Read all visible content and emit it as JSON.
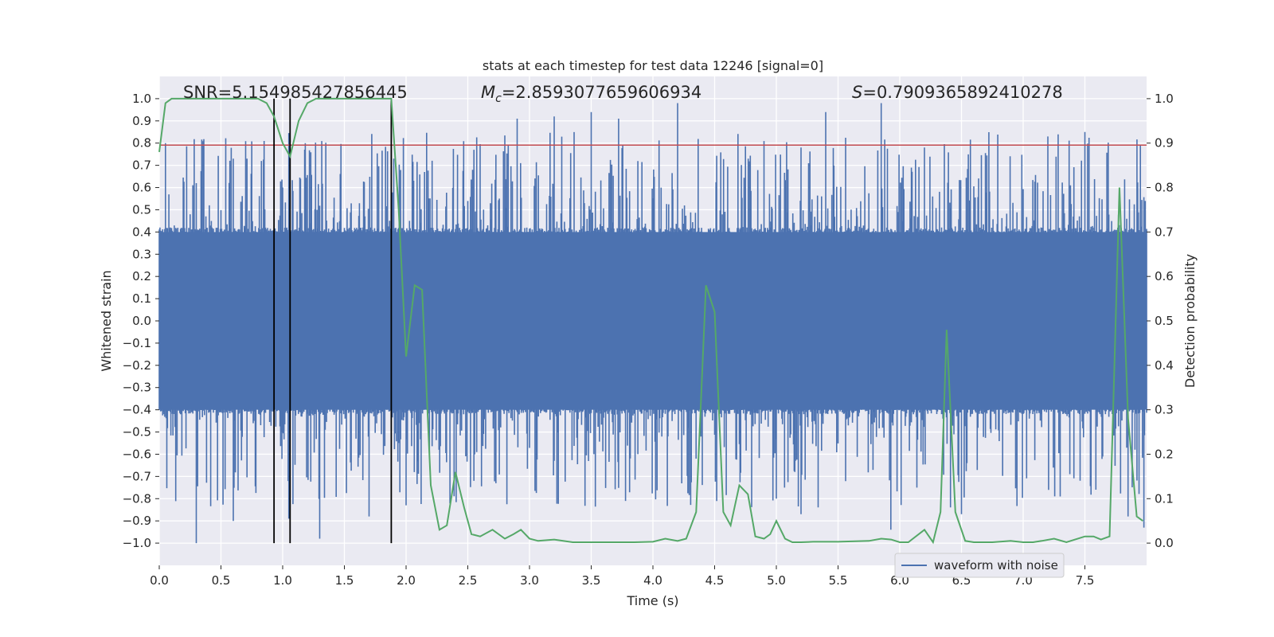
{
  "chart_data": {
    "type": "line",
    "title": "stats at each timestep for test data 12246 [signal=0]",
    "xlabel": "Time (s)",
    "ylabel": "Whitened strain",
    "y2label": "Detection probability",
    "xlim": [
      0.0,
      8.0
    ],
    "ylim": [
      -1.1,
      1.1
    ],
    "y2lim": [
      -0.05,
      1.05
    ],
    "xticks": [
      "0.0",
      "0.5",
      "1.0",
      "1.5",
      "2.0",
      "2.5",
      "3.0",
      "3.5",
      "4.0",
      "4.5",
      "5.0",
      "5.5",
      "6.0",
      "6.5",
      "7.0",
      "7.5"
    ],
    "yticks": [
      "1.0",
      "0.9",
      "0.8",
      "0.7",
      "0.6",
      "0.5",
      "0.4",
      "0.3",
      "0.2",
      "0.1",
      "0.0",
      "−0.1",
      "−0.2",
      "−0.3",
      "−0.4",
      "−0.5",
      "−0.6",
      "−0.7",
      "−0.8",
      "−0.9",
      "−1.0"
    ],
    "y2ticks": [
      "1.0",
      "0.9",
      "0.8",
      "0.7",
      "0.6",
      "0.5",
      "0.4",
      "0.3",
      "0.2",
      "0.1",
      "0.0"
    ],
    "annotations": {
      "snr": "SNR=5.154985427856445",
      "mc_symbol": "M",
      "mc_sub": "c",
      "mc_value": "=2.8593077659606934",
      "s_symbol": "S",
      "s_value": "=0.7909365892410278"
    },
    "legend": {
      "label": "waveform with noise",
      "position": "lower-right"
    },
    "colors": {
      "background": "#eaeaf2",
      "grid": "#ffffff",
      "waveform": "#4c72b0",
      "probability": "#55a868",
      "threshold": "#c44e52",
      "markers": "#000000"
    },
    "threshold": 0.7909365892410278,
    "vertical_markers": [
      0.93,
      1.06,
      1.88
    ],
    "waveform_with_noise": {
      "note_type": "dense noise",
      "core_amplitude": 0.4,
      "peaks_up": [
        [
          0.05,
          0.8
        ],
        [
          0.3,
          0.62
        ],
        [
          0.6,
          0.73
        ],
        [
          0.83,
          0.72
        ],
        [
          1.0,
          0.6
        ],
        [
          2.15,
          0.67
        ],
        [
          2.55,
          0.77
        ],
        [
          2.9,
          0.91
        ],
        [
          3.2,
          0.92
        ],
        [
          3.5,
          0.94
        ],
        [
          3.72,
          0.91
        ],
        [
          4.2,
          0.98
        ],
        [
          5.2,
          0.78
        ],
        [
          5.4,
          0.94
        ],
        [
          5.85,
          0.98
        ],
        [
          6.2,
          0.78
        ],
        [
          7.2,
          0.83
        ],
        [
          7.5,
          0.85
        ],
        [
          7.95,
          0.79
        ]
      ],
      "peaks_down": [
        [
          0.3,
          -1.0
        ],
        [
          0.6,
          -0.9
        ],
        [
          1.05,
          -0.89
        ],
        [
          1.3,
          -0.98
        ],
        [
          1.7,
          -0.88
        ],
        [
          2.0,
          -0.83
        ],
        [
          3.2,
          -0.63
        ],
        [
          3.78,
          -0.81
        ],
        [
          4.35,
          -0.62
        ],
        [
          5.2,
          -0.87
        ],
        [
          5.93,
          -0.94
        ],
        [
          6.5,
          -0.87
        ],
        [
          7.3,
          -0.79
        ],
        [
          7.85,
          -0.88
        ],
        [
          7.98,
          -0.93
        ]
      ]
    },
    "detection_probability": {
      "x": [
        0.0,
        0.05,
        0.1,
        0.2,
        0.3,
        0.4,
        0.5,
        0.6,
        0.7,
        0.8,
        0.87,
        0.93,
        1.0,
        1.06,
        1.13,
        1.2,
        1.27,
        1.35,
        1.5,
        1.65,
        1.8,
        1.88,
        1.94,
        2.0,
        2.07,
        2.13,
        2.2,
        2.27,
        2.33,
        2.4,
        2.47,
        2.53,
        2.6,
        2.7,
        2.8,
        2.87,
        2.93,
        3.0,
        3.07,
        3.2,
        3.35,
        3.5,
        3.7,
        3.85,
        4.0,
        4.1,
        4.2,
        4.27,
        4.35,
        4.43,
        4.5,
        4.57,
        4.63,
        4.7,
        4.77,
        4.83,
        4.9,
        4.95,
        5.0,
        5.07,
        5.13,
        5.2,
        5.3,
        5.5,
        5.75,
        5.85,
        5.93,
        6.0,
        6.07,
        6.2,
        6.27,
        6.33,
        6.38,
        6.45,
        6.53,
        6.6,
        6.75,
        6.9,
        7.0,
        7.08,
        7.15,
        7.25,
        7.35,
        7.5,
        7.57,
        7.63,
        7.7,
        7.78,
        7.85,
        7.92,
        7.97
      ],
      "y": [
        0.88,
        0.99,
        1.0,
        1.0,
        1.0,
        1.0,
        1.0,
        1.0,
        1.0,
        1.0,
        0.99,
        0.96,
        0.9,
        0.87,
        0.95,
        0.99,
        1.0,
        1.0,
        1.0,
        1.0,
        1.0,
        1.0,
        0.75,
        0.42,
        0.58,
        0.57,
        0.13,
        0.03,
        0.04,
        0.16,
        0.08,
        0.02,
        0.015,
        0.03,
        0.01,
        0.02,
        0.03,
        0.01,
        0.005,
        0.008,
        0.002,
        0.002,
        0.002,
        0.002,
        0.003,
        0.01,
        0.005,
        0.01,
        0.07,
        0.58,
        0.52,
        0.07,
        0.04,
        0.13,
        0.11,
        0.015,
        0.01,
        0.02,
        0.05,
        0.01,
        0.002,
        0.002,
        0.003,
        0.003,
        0.005,
        0.01,
        0.008,
        0.002,
        0.002,
        0.03,
        0.002,
        0.07,
        0.48,
        0.07,
        0.005,
        0.002,
        0.002,
        0.005,
        0.002,
        0.002,
        0.005,
        0.01,
        0.002,
        0.015,
        0.015,
        0.008,
        0.015,
        0.8,
        0.28,
        0.06,
        0.05
      ]
    }
  }
}
